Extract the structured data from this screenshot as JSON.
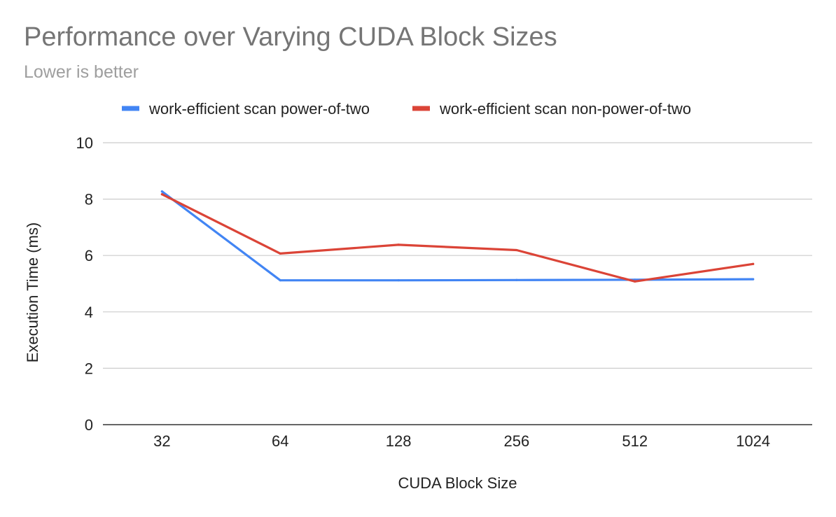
{
  "chart_data": {
    "type": "line",
    "title": "Performance over Varying CUDA Block Sizes",
    "subtitle": "Lower is better",
    "xlabel": "CUDA Block Size",
    "ylabel": "Execution Time (ms)",
    "categories": [
      "32",
      "64",
      "128",
      "256",
      "512",
      "1024"
    ],
    "ylim": [
      0,
      10
    ],
    "yticks": [
      0,
      2,
      4,
      6,
      8,
      10
    ],
    "grid": true,
    "legend_position": "top",
    "series": [
      {
        "name": "work-efficient scan power-of-two",
        "color": "#4285f4",
        "values": [
          8.27,
          5.12,
          5.12,
          5.13,
          5.14,
          5.16
        ]
      },
      {
        "name": "work-efficient scan non-power-of-two",
        "color": "#db4437",
        "values": [
          8.17,
          6.07,
          6.38,
          6.19,
          5.08,
          5.7
        ]
      }
    ]
  }
}
